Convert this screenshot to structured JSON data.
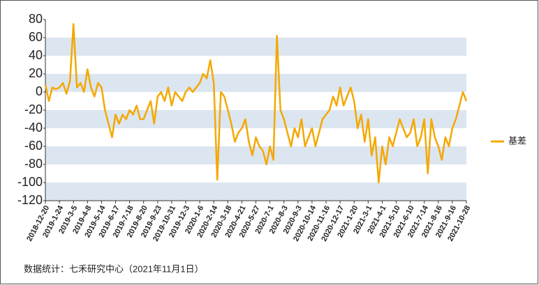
{
  "chart_data": {
    "type": "line",
    "source": "数据统计：七禾研究中心（2021年11月1日）",
    "categories": [
      "2018-12-20",
      null,
      null,
      null,
      "2019-1-24",
      null,
      null,
      null,
      "2019-3-5",
      null,
      null,
      null,
      "2019-4-8",
      null,
      null,
      null,
      "2019-5-14",
      null,
      null,
      null,
      "2019-6-17",
      null,
      null,
      null,
      "2019-7-18",
      null,
      null,
      null,
      "2019-8-20",
      null,
      null,
      null,
      "2019-9-23",
      null,
      null,
      null,
      "2019-10-31",
      null,
      null,
      null,
      "2019-12-3",
      null,
      null,
      null,
      "2020-1-6",
      null,
      null,
      null,
      "2020-2-14",
      null,
      null,
      null,
      "2020-3-18",
      null,
      null,
      null,
      "2020-4-21",
      null,
      null,
      null,
      "2020-5-27",
      null,
      null,
      null,
      "2020-7-1",
      null,
      null,
      null,
      "2020-8-3",
      null,
      null,
      null,
      "2020-9-3",
      null,
      null,
      null,
      "2020-10-14",
      null,
      null,
      null,
      "2020-11-16",
      null,
      null,
      null,
      "2020-12-17",
      null,
      null,
      null,
      "2021-1-20",
      null,
      null,
      null,
      "2021-3-1",
      null,
      null,
      null,
      "2021-4-1",
      null,
      null,
      null,
      "2021-5-10",
      null,
      null,
      null,
      "2021-6-10",
      null,
      null,
      null,
      "2021-7-14",
      null,
      null,
      null,
      "2021-8-16",
      null,
      null,
      null,
      "2021-9-16",
      null,
      null,
      null,
      "2021-10-28"
    ],
    "series": [
      {
        "name": "基差",
        "color": "#f5a800",
        "values": [
          8,
          -10,
          5,
          3,
          5,
          10,
          -2,
          12,
          75,
          5,
          10,
          0,
          25,
          5,
          -5,
          10,
          5,
          -20,
          -35,
          -50,
          -25,
          -35,
          -25,
          -30,
          -20,
          -25,
          -15,
          -30,
          -30,
          -20,
          -10,
          -35,
          -5,
          0,
          -10,
          5,
          -15,
          0,
          -5,
          -10,
          0,
          5,
          0,
          5,
          10,
          20,
          15,
          35,
          10,
          -97,
          0,
          -5,
          -20,
          -35,
          -55,
          -45,
          -40,
          -30,
          -55,
          -70,
          -50,
          -60,
          -65,
          -80,
          -60,
          -75,
          62,
          -20,
          -30,
          -45,
          -60,
          -40,
          -50,
          -30,
          -60,
          -50,
          -40,
          -60,
          -45,
          -30,
          -25,
          -20,
          -5,
          -15,
          5,
          -15,
          -5,
          5,
          -10,
          -40,
          -25,
          -55,
          -30,
          -70,
          -50,
          -100,
          -60,
          -80,
          -50,
          -60,
          -45,
          -30,
          -40,
          -50,
          -45,
          -30,
          -60,
          -50,
          -30,
          -90,
          -30,
          -50,
          -60,
          -75,
          -50,
          -60,
          -40,
          -30,
          -15,
          0,
          -10
        ]
      }
    ],
    "ylim": [
      -120,
      80
    ],
    "yticks": [
      -120,
      -100,
      -80,
      -60,
      -40,
      -20,
      0,
      20,
      40,
      60,
      80
    ],
    "legend": "right",
    "grid": "bands"
  }
}
